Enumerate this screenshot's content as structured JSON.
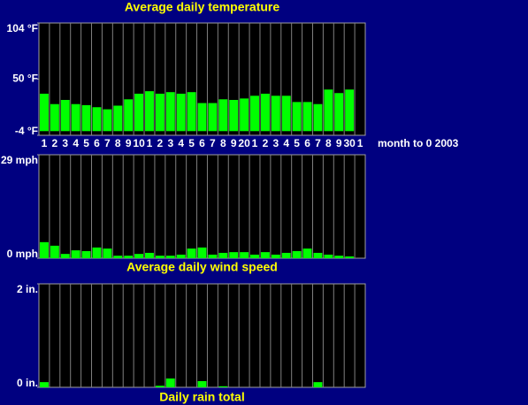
{
  "chart_data": [
    {
      "type": "bar",
      "title": "Average daily temperature",
      "xlabel": "month to 0 2003",
      "categories": [
        "1",
        "2",
        "3",
        "4",
        "5",
        "6",
        "7",
        "8",
        "9",
        "10",
        "1",
        "2",
        "3",
        "4",
        "5",
        "6",
        "7",
        "8",
        "9",
        "20",
        "1",
        "2",
        "3",
        "4",
        "5",
        "6",
        "7",
        "8",
        "9",
        "30",
        "1"
      ],
      "values": [
        36,
        26,
        30,
        26,
        25,
        23,
        21,
        24.5,
        30.6,
        36,
        38.4,
        36,
        37.5,
        36,
        37.5,
        27,
        27,
        30.6,
        30,
        31.4,
        34,
        36,
        34,
        34,
        28,
        28,
        26,
        40,
        36.6,
        40,
        null
      ],
      "color": "#00ff00",
      "ylim": [
        -4,
        104
      ],
      "yticks": [
        {
          "value": 104,
          "label": "104 °F"
        },
        {
          "value": 50,
          "label": "50 °F"
        },
        {
          "value": -4,
          "label": "-4 °F"
        }
      ]
    },
    {
      "type": "bar",
      "title": "Average daily wind speed",
      "values": [
        4.5,
        3.5,
        1.2,
        2.2,
        2,
        3,
        2.7,
        0.7,
        0.7,
        1.2,
        1.5,
        0.7,
        0.7,
        1,
        2.7,
        3,
        1,
        1.5,
        1.7,
        1.7,
        1,
        1.7,
        1,
        1.5,
        2,
        2.7,
        1.5,
        1,
        0.7,
        0.5,
        null
      ],
      "color": "#00ff00",
      "ylim": [
        0,
        29
      ],
      "yticks": [
        {
          "value": 29,
          "label": "29 mph"
        },
        {
          "value": 0,
          "label": "0 mph"
        }
      ]
    },
    {
      "type": "bar",
      "title": "Daily rain total",
      "values": [
        0.1,
        0,
        0,
        0,
        0,
        0,
        0,
        0,
        0,
        0,
        0,
        0.03,
        0.17,
        0,
        0,
        0.12,
        0,
        0.02,
        0,
        0,
        0,
        0,
        0,
        0,
        0,
        0,
        0.1,
        0,
        0,
        0,
        null
      ],
      "color": "#00ff00",
      "ylim": [
        0,
        2
      ],
      "yticks": [
        {
          "value": 2,
          "label": "2 in."
        },
        {
          "value": 0,
          "label": "0 in."
        }
      ]
    }
  ]
}
